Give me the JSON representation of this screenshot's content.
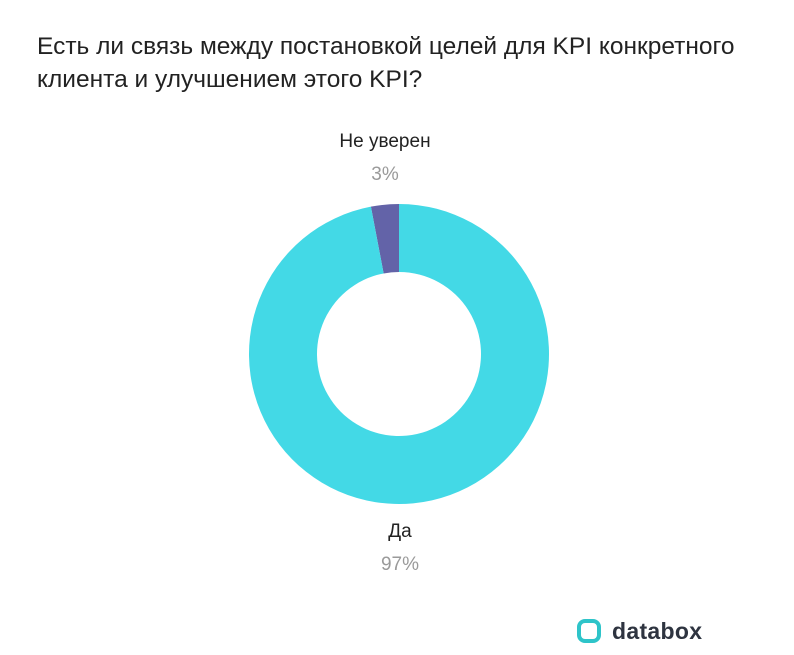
{
  "chart_data": {
    "type": "pie",
    "title": "Есть ли связь между постановкой целей для KPI конкретного клиента и улучшением этого KPI?",
    "donut": true,
    "slices": [
      {
        "label": "Не уверен",
        "value": 3,
        "display": "3%",
        "color": "#6363a8"
      },
      {
        "label": "Да",
        "value": 97,
        "display": "97%",
        "color": "#43d9e6"
      }
    ]
  },
  "brand": {
    "name": "databox",
    "color": "#2ec4c9"
  }
}
